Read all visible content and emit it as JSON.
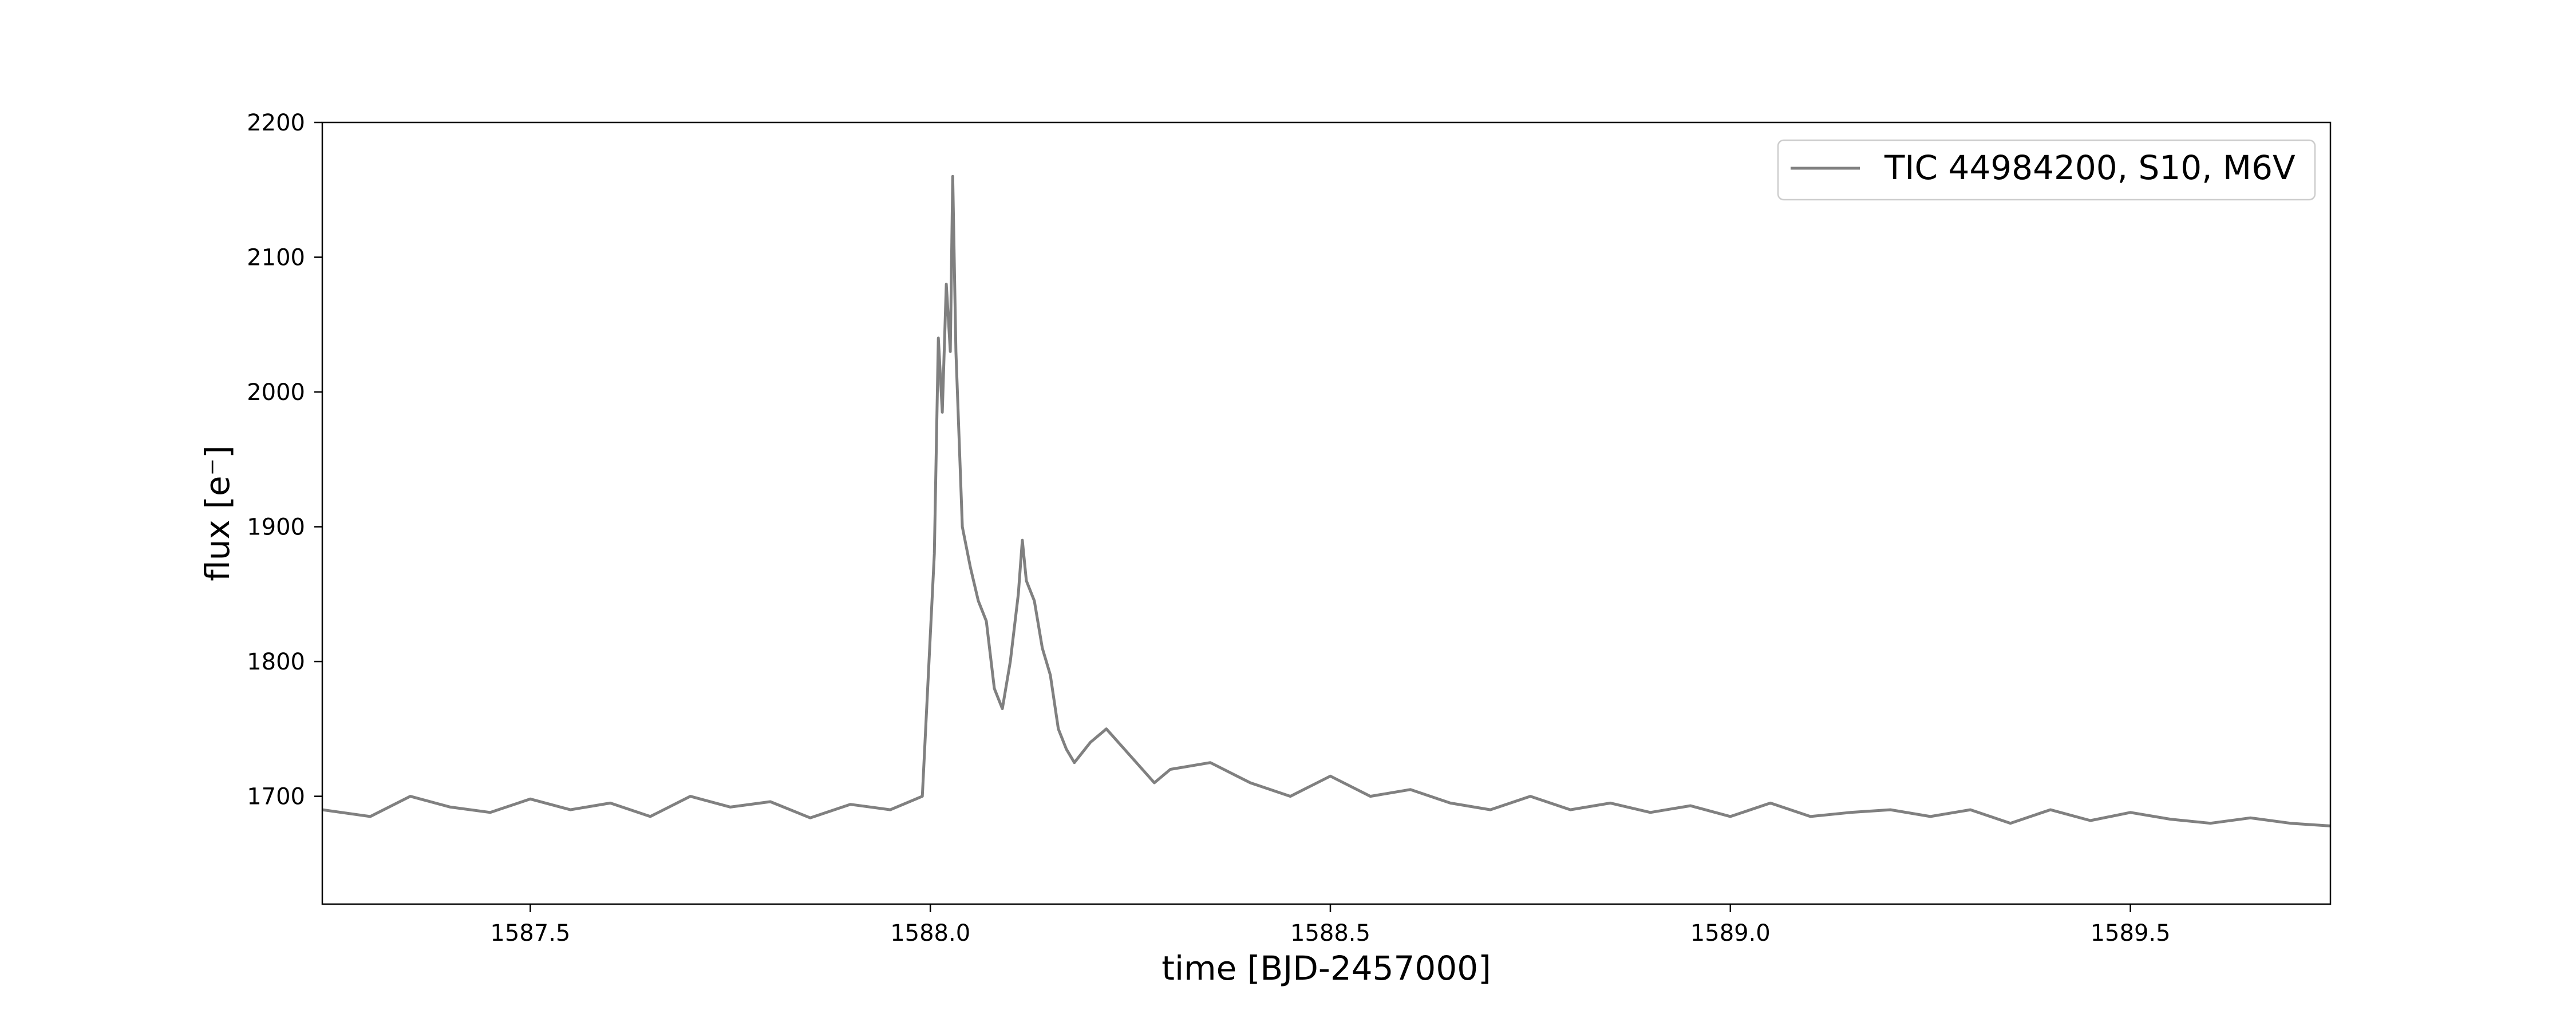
{
  "chart_data": {
    "type": "line",
    "title": "",
    "xlabel": "time [BJD-2457000]",
    "ylabel": "flux [e⁻]",
    "xlim": [
      1587.24,
      1589.75
    ],
    "ylim": [
      1620,
      2200
    ],
    "xticks": [
      1587.5,
      1588.0,
      1588.5,
      1589.0,
      1589.5
    ],
    "xtick_labels": [
      "1587.5",
      "1588.0",
      "1588.5",
      "1589.0",
      "1589.5"
    ],
    "yticks": [
      1700,
      1800,
      1900,
      2000,
      2100,
      2200
    ],
    "ytick_labels": [
      "1700",
      "1800",
      "1900",
      "2000",
      "2100",
      "2200"
    ],
    "grid": false,
    "legend_position": "top-right",
    "series": [
      {
        "name": "TIC 44984200, S10, M6V",
        "color": "#808080",
        "x": [
          1587.24,
          1587.3,
          1587.35,
          1587.4,
          1587.45,
          1587.5,
          1587.55,
          1587.6,
          1587.65,
          1587.7,
          1587.75,
          1587.8,
          1587.85,
          1587.9,
          1587.95,
          1587.99,
          1588.005,
          1588.01,
          1588.015,
          1588.02,
          1588.025,
          1588.028,
          1588.032,
          1588.04,
          1588.05,
          1588.06,
          1588.07,
          1588.08,
          1588.09,
          1588.1,
          1588.11,
          1588.115,
          1588.12,
          1588.13,
          1588.14,
          1588.15,
          1588.16,
          1588.17,
          1588.18,
          1588.2,
          1588.22,
          1588.25,
          1588.28,
          1588.3,
          1588.35,
          1588.4,
          1588.45,
          1588.5,
          1588.55,
          1588.6,
          1588.65,
          1588.7,
          1588.75,
          1588.8,
          1588.85,
          1588.9,
          1588.95,
          1589.0,
          1589.05,
          1589.1,
          1589.15,
          1589.2,
          1589.25,
          1589.3,
          1589.35,
          1589.4,
          1589.45,
          1589.5,
          1589.55,
          1589.6,
          1589.65,
          1589.7,
          1589.75
        ],
        "y": [
          1690,
          1685,
          1700,
          1692,
          1688,
          1698,
          1690,
          1695,
          1685,
          1700,
          1692,
          1696,
          1684,
          1694,
          1690,
          1700,
          1880,
          2040,
          1985,
          2080,
          2030,
          2160,
          2030,
          1900,
          1870,
          1845,
          1830,
          1780,
          1765,
          1800,
          1850,
          1890,
          1860,
          1845,
          1810,
          1790,
          1750,
          1735,
          1725,
          1740,
          1750,
          1730,
          1710,
          1720,
          1725,
          1710,
          1700,
          1715,
          1700,
          1705,
          1695,
          1690,
          1700,
          1690,
          1695,
          1688,
          1693,
          1685,
          1695,
          1685,
          1688,
          1690,
          1685,
          1690,
          1680,
          1690,
          1682,
          1688,
          1683,
          1680,
          1684,
          1680,
          1678
        ]
      }
    ]
  }
}
